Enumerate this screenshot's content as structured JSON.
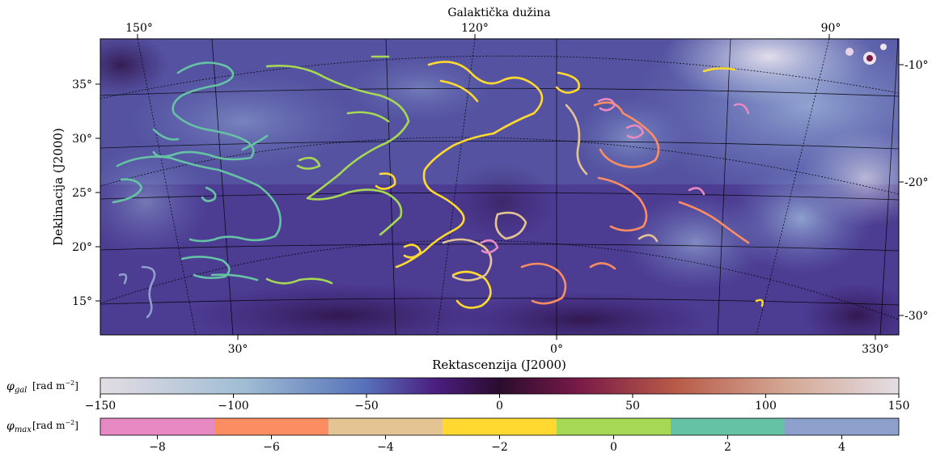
{
  "figure": {
    "top_axis_label": "Galaktička dužina",
    "top_ticks": [
      "150°",
      "120°",
      "90°"
    ],
    "right_ticks": [
      "-10°",
      "-20°",
      "-30°"
    ],
    "left_axis_label": "Deklinacija (J2000)",
    "left_ticks": [
      "35°",
      "30°",
      "25°",
      "20°",
      "15°"
    ],
    "bottom_axis_label": "Rektascenzija (J2000)",
    "bottom_ticks": [
      "30°",
      "0°",
      "330°"
    ]
  },
  "colorbar_gal": {
    "label": "φgal [rad m⁻²]",
    "symbol": "φ",
    "subscript": "gal",
    "unit": "[rad m",
    "unit_exp": "−2",
    "unit_close": "]",
    "ticks": [
      "−150",
      "−100",
      "−50",
      "0",
      "50",
      "100",
      "150"
    ],
    "range": [
      -150,
      150
    ],
    "colors": [
      "#e4dde4",
      "#9fbdd4",
      "#5872ba",
      "#4a1e80",
      "#2a0c2e",
      "#7a1a48",
      "#b85a48",
      "#d4a894",
      "#e4dde4"
    ]
  },
  "colorbar_max": {
    "label": "φmax [rad m⁻²]",
    "symbol": "φ",
    "subscript": "max",
    "unit": "[rad m",
    "unit_exp": "−2",
    "unit_close": "]",
    "ticks": [
      "−8",
      "−6",
      "−4",
      "−2",
      "0",
      "2",
      "4"
    ],
    "range": [
      -9,
      5
    ],
    "bins": [
      {
        "from": -9,
        "to": -7,
        "color": "#e78ac3"
      },
      {
        "from": -7,
        "to": -5,
        "color": "#fc8d62"
      },
      {
        "from": -5,
        "to": -3,
        "color": "#e5c494"
      },
      {
        "from": -3,
        "to": -1,
        "color": "#ffd92f"
      },
      {
        "from": -1,
        "to": 1,
        "color": "#a6d854"
      },
      {
        "from": 1,
        "to": 3,
        "color": "#66c2a5"
      },
      {
        "from": 3,
        "to": 5,
        "color": "#8da0cb"
      }
    ]
  }
}
